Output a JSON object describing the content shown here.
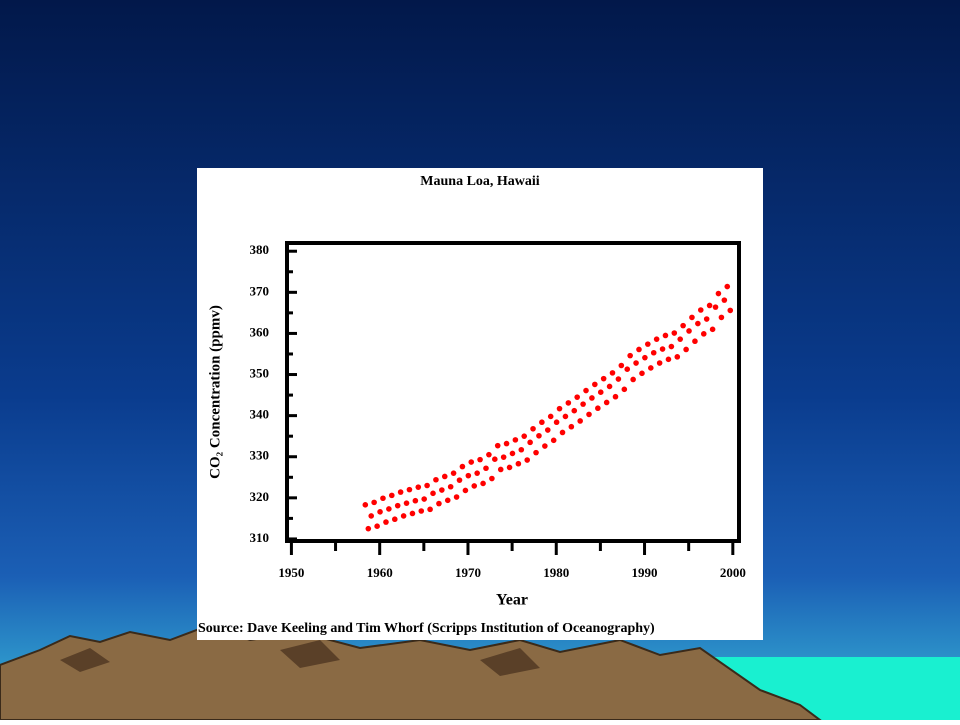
{
  "chart_data": {
    "type": "scatter",
    "title": "Mauna Loa, Hawaii",
    "x_label": "Year",
    "y_label": "CO₂ Concentration (ppmv)",
    "source": "Source: Dave Keeling and Tim Whorf (Scripps Institution of Oceanography)",
    "color": "#ff0000",
    "xlim": [
      1949.5,
      2000.7
    ],
    "ylim": [
      309.5,
      382
    ],
    "xticks": [
      1950,
      1960,
      1970,
      1980,
      1990,
      2000
    ],
    "xminorticks": [
      1955,
      1965,
      1975,
      1985,
      1995
    ],
    "yticks": [
      310,
      320,
      330,
      340,
      350,
      360,
      370,
      380
    ],
    "yminorticks": [
      315,
      325,
      335,
      345,
      355,
      365,
      375
    ],
    "x": [
      1958.37,
      1958.71,
      1959.04,
      1959.37,
      1959.71,
      1960.04,
      1960.37,
      1960.71,
      1961.04,
      1961.37,
      1961.71,
      1962.04,
      1962.37,
      1962.71,
      1963.04,
      1963.37,
      1963.71,
      1964.04,
      1964.37,
      1964.71,
      1965.04,
      1965.37,
      1965.71,
      1966.04,
      1966.37,
      1966.71,
      1967.04,
      1967.37,
      1967.71,
      1968.04,
      1968.37,
      1968.71,
      1969.04,
      1969.37,
      1969.71,
      1970.04,
      1970.37,
      1970.71,
      1971.04,
      1971.37,
      1971.71,
      1972.04,
      1972.37,
      1972.71,
      1973.04,
      1973.37,
      1973.71,
      1974.04,
      1974.37,
      1974.71,
      1975.04,
      1975.37,
      1975.71,
      1976.04,
      1976.37,
      1976.71,
      1977.04,
      1977.37,
      1977.71,
      1978.04,
      1978.37,
      1978.71,
      1979.04,
      1979.37,
      1979.71,
      1980.04,
      1980.37,
      1980.71,
      1981.04,
      1981.37,
      1981.71,
      1982.04,
      1982.37,
      1982.71,
      1983.04,
      1983.37,
      1983.71,
      1984.04,
      1984.37,
      1984.71,
      1985.04,
      1985.37,
      1985.71,
      1986.04,
      1986.37,
      1986.71,
      1987.04,
      1987.37,
      1987.71,
      1988.04,
      1988.37,
      1988.71,
      1989.04,
      1989.37,
      1989.71,
      1990.04,
      1990.37,
      1990.71,
      1991.04,
      1991.37,
      1991.71,
      1992.04,
      1992.37,
      1992.71,
      1993.04,
      1993.37,
      1993.71,
      1994.04,
      1994.37,
      1994.71,
      1995.04,
      1995.37,
      1995.71,
      1996.04,
      1996.37,
      1996.71,
      1997.04,
      1997.37,
      1997.71,
      1998.04,
      1998.37,
      1998.71,
      1999.04,
      1999.37,
      1999.71
    ],
    "values": [
      318.3,
      312.5,
      315.6,
      318.9,
      313.1,
      316.6,
      319.9,
      314.1,
      317.3,
      320.6,
      314.8,
      318.1,
      321.4,
      315.6,
      318.7,
      322.0,
      316.2,
      319.3,
      322.6,
      316.8,
      319.7,
      323.0,
      317.2,
      321.1,
      324.4,
      318.6,
      321.9,
      325.2,
      319.4,
      322.7,
      326.0,
      320.2,
      324.3,
      327.6,
      321.8,
      325.4,
      328.7,
      322.9,
      326.0,
      329.3,
      323.5,
      327.2,
      330.5,
      324.7,
      329.4,
      332.7,
      326.9,
      329.9,
      333.2,
      327.4,
      330.8,
      334.1,
      328.3,
      331.7,
      335.0,
      329.2,
      333.5,
      336.8,
      331.0,
      335.1,
      338.4,
      332.6,
      336.5,
      339.8,
      334.0,
      338.4,
      341.7,
      335.9,
      339.8,
      343.1,
      337.3,
      341.2,
      344.5,
      338.7,
      342.8,
      346.1,
      340.3,
      344.3,
      347.6,
      341.8,
      345.7,
      349.0,
      343.2,
      347.1,
      350.4,
      344.6,
      348.9,
      352.2,
      346.4,
      351.3,
      354.6,
      348.8,
      352.8,
      356.1,
      350.3,
      354.1,
      357.4,
      351.6,
      355.3,
      358.6,
      352.8,
      356.2,
      359.5,
      353.7,
      356.8,
      360.1,
      354.3,
      358.6,
      361.9,
      356.1,
      360.6,
      363.9,
      358.1,
      362.4,
      365.7,
      359.9,
      363.5,
      366.8,
      361.0,
      366.4,
      369.7,
      363.9,
      368.1,
      371.4,
      365.6
    ]
  }
}
